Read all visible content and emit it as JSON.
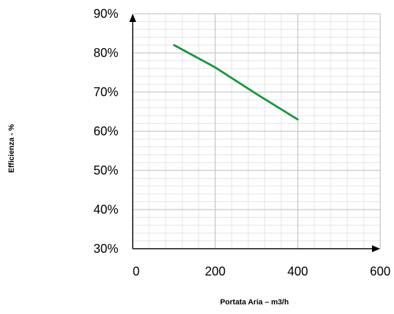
{
  "chart_data": {
    "type": "line",
    "title": "",
    "xlabel": "Portata Aria – m3/h",
    "ylabel": "Efficienza - %",
    "xlim": [
      0,
      600
    ],
    "ylim": [
      30,
      90
    ],
    "x_ticks": [
      0,
      200,
      400,
      600
    ],
    "x_tick_labels": [
      "0",
      "200",
      "400",
      "600"
    ],
    "y_ticks": [
      30,
      40,
      50,
      60,
      70,
      80,
      90
    ],
    "y_tick_labels": [
      "30%",
      "40%",
      "50%",
      "60%",
      "70%",
      "80%",
      "90%"
    ],
    "grid": true,
    "legend": "none",
    "series": [
      {
        "color": "#1a9641",
        "x": [
          100,
          200,
          300,
          400
        ],
        "y": [
          82,
          76.3,
          69.5,
          63
        ]
      }
    ]
  }
}
